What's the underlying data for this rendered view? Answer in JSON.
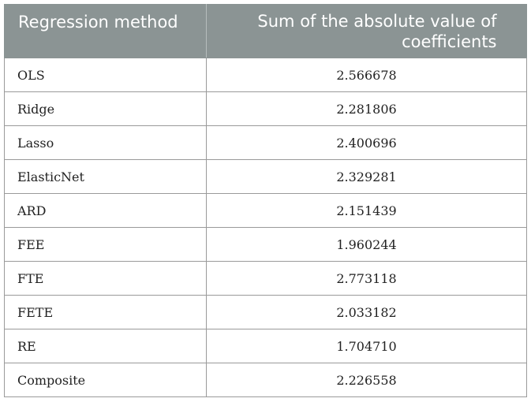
{
  "table": {
    "headers": [
      "Regression method",
      "Sum of the absolute value of coefficients"
    ],
    "rows": [
      [
        "OLS",
        "2.566678"
      ],
      [
        "Ridge",
        "2.281806"
      ],
      [
        "Lasso",
        "2.400696"
      ],
      [
        "ElasticNet",
        "2.329281"
      ],
      [
        "ARD",
        "2.151439"
      ],
      [
        "FEE",
        "1.960244"
      ],
      [
        "FTE",
        "2.773118"
      ],
      [
        "FETE",
        "2.033182"
      ],
      [
        "RE",
        "1.704710"
      ],
      [
        "Composite",
        "2.226558"
      ]
    ]
  },
  "colors": {
    "header_background": "#8b9494",
    "header_text": "#ffffff",
    "border": "#9a9a9a"
  }
}
